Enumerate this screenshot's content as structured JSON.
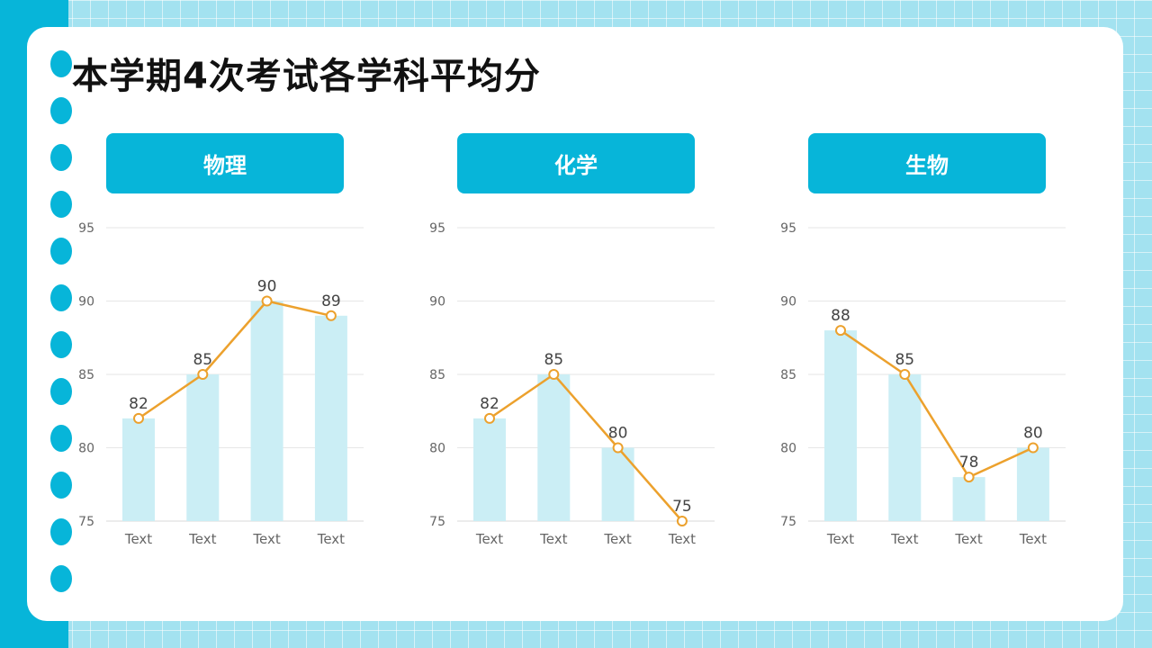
{
  "slide": {
    "title": "本学期4次考试各学科平均分"
  },
  "colors": {
    "accent": "#07b5d9",
    "bar": "#cbeef5",
    "line": "#eca12d",
    "grid": "#e6e6e6",
    "axis_text": "#666666",
    "label_text": "#444444"
  },
  "chart_data": [
    {
      "type": "bar",
      "title": "物理",
      "categories": [
        "Text",
        "Text",
        "Text",
        "Text"
      ],
      "values": [
        82,
        85,
        90,
        89
      ],
      "overlay": "line",
      "ylim": [
        75,
        95
      ],
      "yticks": [
        75,
        80,
        85,
        90,
        95
      ],
      "grid": true
    },
    {
      "type": "bar",
      "title": "化学",
      "categories": [
        "Text",
        "Text",
        "Text",
        "Text"
      ],
      "values": [
        82,
        85,
        80,
        75
      ],
      "overlay": "line",
      "ylim": [
        75,
        95
      ],
      "yticks": [
        75,
        80,
        85,
        90,
        95
      ],
      "grid": true
    },
    {
      "type": "bar",
      "title": "生物",
      "categories": [
        "Text",
        "Text",
        "Text",
        "Text"
      ],
      "values": [
        88,
        85,
        78,
        80
      ],
      "overlay": "line",
      "ylim": [
        75,
        95
      ],
      "yticks": [
        75,
        80,
        85,
        90,
        95
      ],
      "grid": true
    }
  ]
}
